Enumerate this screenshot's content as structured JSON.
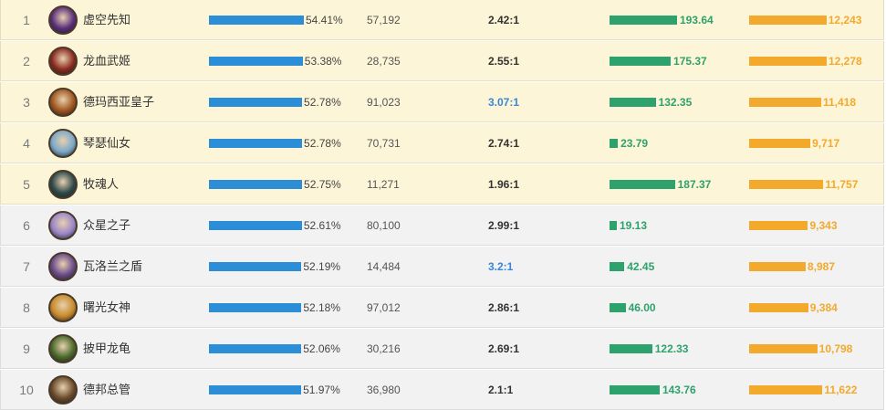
{
  "rows": [
    {
      "rank": "1",
      "name": "虚空先知",
      "win_rate": "54.41%",
      "win_rate_value": 54.41,
      "games": "57,192",
      "kda": "2.42:1",
      "kda_highlight": false,
      "metric_a": "193.64",
      "metric_a_value": 193.64,
      "metric_b": "12,243",
      "metric_b_value": 12243,
      "avatar": "void-prophet-portrait",
      "avatar_color": "#5a2f7a",
      "tier": "top"
    },
    {
      "rank": "2",
      "name": "龙血武姬",
      "win_rate": "53.38%",
      "win_rate_value": 53.38,
      "games": "28,735",
      "kda": "2.55:1",
      "kda_highlight": false,
      "metric_a": "175.37",
      "metric_a_value": 175.37,
      "metric_b": "12,278",
      "metric_b_value": 12278,
      "avatar": "dragon-warrior-portrait",
      "avatar_color": "#8a2a1e",
      "tier": "top"
    },
    {
      "rank": "3",
      "name": "德玛西亚皇子",
      "win_rate": "52.78%",
      "win_rate_value": 52.78,
      "games": "91,023",
      "kda": "3.07:1",
      "kda_highlight": true,
      "metric_a": "132.35",
      "metric_a_value": 132.35,
      "metric_b": "11,418",
      "metric_b_value": 11418,
      "avatar": "prince-portrait",
      "avatar_color": "#a0561e",
      "tier": "top"
    },
    {
      "rank": "4",
      "name": "琴瑟仙女",
      "win_rate": "52.78%",
      "win_rate_value": 52.78,
      "games": "70,731",
      "kda": "2.74:1",
      "kda_highlight": false,
      "metric_a": "23.79",
      "metric_a_value": 23.79,
      "metric_b": "9,717",
      "metric_b_value": 9717,
      "avatar": "maven-portrait",
      "avatar_color": "#7aa8c8",
      "tier": "top"
    },
    {
      "rank": "5",
      "name": "牧魂人",
      "win_rate": "52.75%",
      "win_rate_value": 52.75,
      "games": "11,271",
      "kda": "1.96:1",
      "kda_highlight": false,
      "metric_a": "187.37",
      "metric_a_value": 187.37,
      "metric_b": "11,757",
      "metric_b_value": 11757,
      "avatar": "soul-shepherd-portrait",
      "avatar_color": "#2f4a4a",
      "tier": "top"
    },
    {
      "rank": "6",
      "name": "众星之子",
      "win_rate": "52.61%",
      "win_rate_value": 52.61,
      "games": "80,100",
      "kda": "2.99:1",
      "kda_highlight": false,
      "metric_a": "19.13",
      "metric_a_value": 19.13,
      "metric_b": "9,343",
      "metric_b_value": 9343,
      "avatar": "star-child-portrait",
      "avatar_color": "#9a86c8",
      "tier": "rest"
    },
    {
      "rank": "7",
      "name": "瓦洛兰之盾",
      "win_rate": "52.19%",
      "win_rate_value": 52.19,
      "games": "14,484",
      "kda": "3.2:1",
      "kda_highlight": true,
      "metric_a": "42.45",
      "metric_a_value": 42.45,
      "metric_b": "8,987",
      "metric_b_value": 8987,
      "avatar": "shield-portrait",
      "avatar_color": "#6a4a8a",
      "tier": "rest"
    },
    {
      "rank": "8",
      "name": "曙光女神",
      "win_rate": "52.18%",
      "win_rate_value": 52.18,
      "games": "97,012",
      "kda": "2.86:1",
      "kda_highlight": false,
      "metric_a": "46.00",
      "metric_a_value": 46.0,
      "metric_b": "9,384",
      "metric_b_value": 9384,
      "avatar": "dawn-goddess-portrait",
      "avatar_color": "#c88a2a",
      "tier": "rest"
    },
    {
      "rank": "9",
      "name": "披甲龙龟",
      "win_rate": "52.06%",
      "win_rate_value": 52.06,
      "games": "30,216",
      "kda": "2.69:1",
      "kda_highlight": false,
      "metric_a": "122.33",
      "metric_a_value": 122.33,
      "metric_b": "10,798",
      "metric_b_value": 10798,
      "avatar": "armadillo-portrait",
      "avatar_color": "#4a6a2a",
      "tier": "rest"
    },
    {
      "rank": "10",
      "name": "德邦总管",
      "win_rate": "51.97%",
      "win_rate_value": 51.97,
      "games": "36,980",
      "kda": "2.1:1",
      "kda_highlight": false,
      "metric_a": "143.76",
      "metric_a_value": 143.76,
      "metric_b": "11,622",
      "metric_b_value": 11622,
      "avatar": "seneschal-portrait",
      "avatar_color": "#6a4a2a",
      "tier": "rest"
    }
  ],
  "colors": {
    "win_bar": "#2b8ed6",
    "metric_a_bar": "#2ea26c",
    "metric_b_bar": "#f2a92c",
    "kda_highlight": "#3a86d6"
  }
}
